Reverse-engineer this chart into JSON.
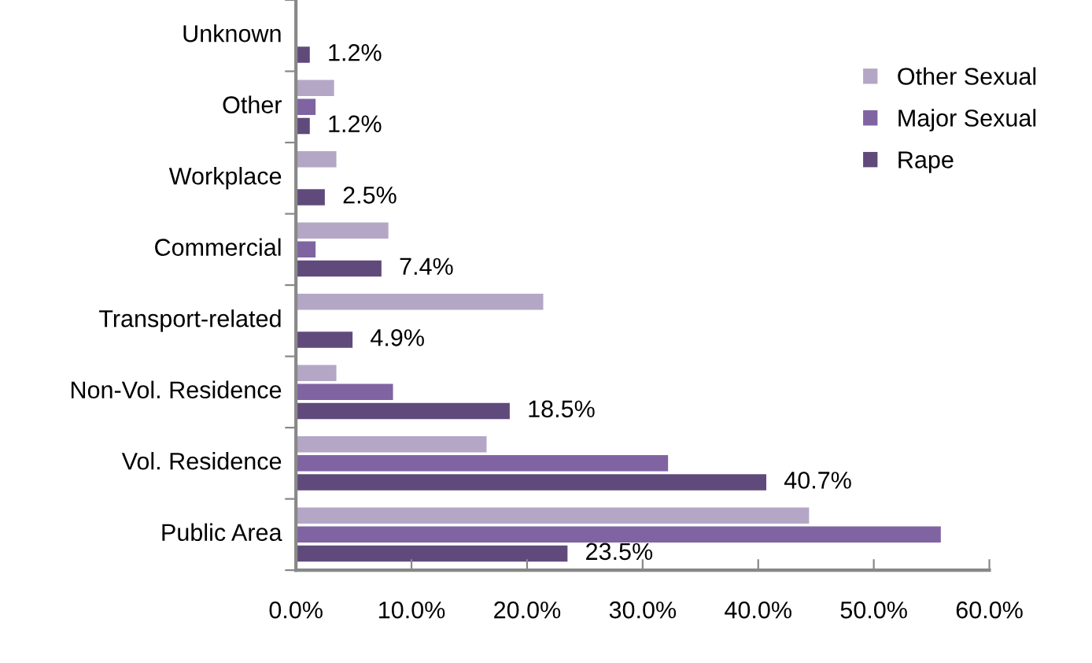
{
  "chart_data": {
    "type": "bar",
    "orientation": "horizontal",
    "categories": [
      "Unknown",
      "Other",
      "Workplace",
      "Commercial",
      "Transport-related",
      "Non-Vol. Residence",
      "Vol. Residence",
      "Public Area"
    ],
    "series": [
      {
        "name": "Other Sexual",
        "color": "#b4a7c6",
        "values": [
          0,
          3.3,
          3.5,
          8.0,
          21.4,
          3.5,
          16.5,
          44.4
        ]
      },
      {
        "name": "Major Sexual",
        "color": "#8064a2",
        "values": [
          0,
          1.7,
          0,
          1.7,
          0,
          8.4,
          32.2,
          55.8
        ]
      },
      {
        "name": "Rape",
        "color": "#604a7b",
        "values": [
          1.2,
          1.2,
          2.5,
          7.4,
          4.9,
          18.5,
          40.7,
          23.5
        ],
        "value_labels": [
          "1.2%",
          "1.2%",
          "2.5%",
          "7.4%",
          "4.9%",
          "18.5%",
          "40.7%",
          "23.5%"
        ]
      }
    ],
    "xlim": [
      0,
      60
    ],
    "xticks": [
      {
        "value": 0,
        "label": "0.0%"
      },
      {
        "value": 10,
        "label": "10.0%"
      },
      {
        "value": 20,
        "label": "20.0%"
      },
      {
        "value": 30,
        "label": "30.0%"
      },
      {
        "value": 40,
        "label": "40.0%"
      },
      {
        "value": 50,
        "label": "50.0%"
      },
      {
        "value": 60,
        "label": "60.0%"
      }
    ],
    "grid": false,
    "legend": "top right"
  }
}
